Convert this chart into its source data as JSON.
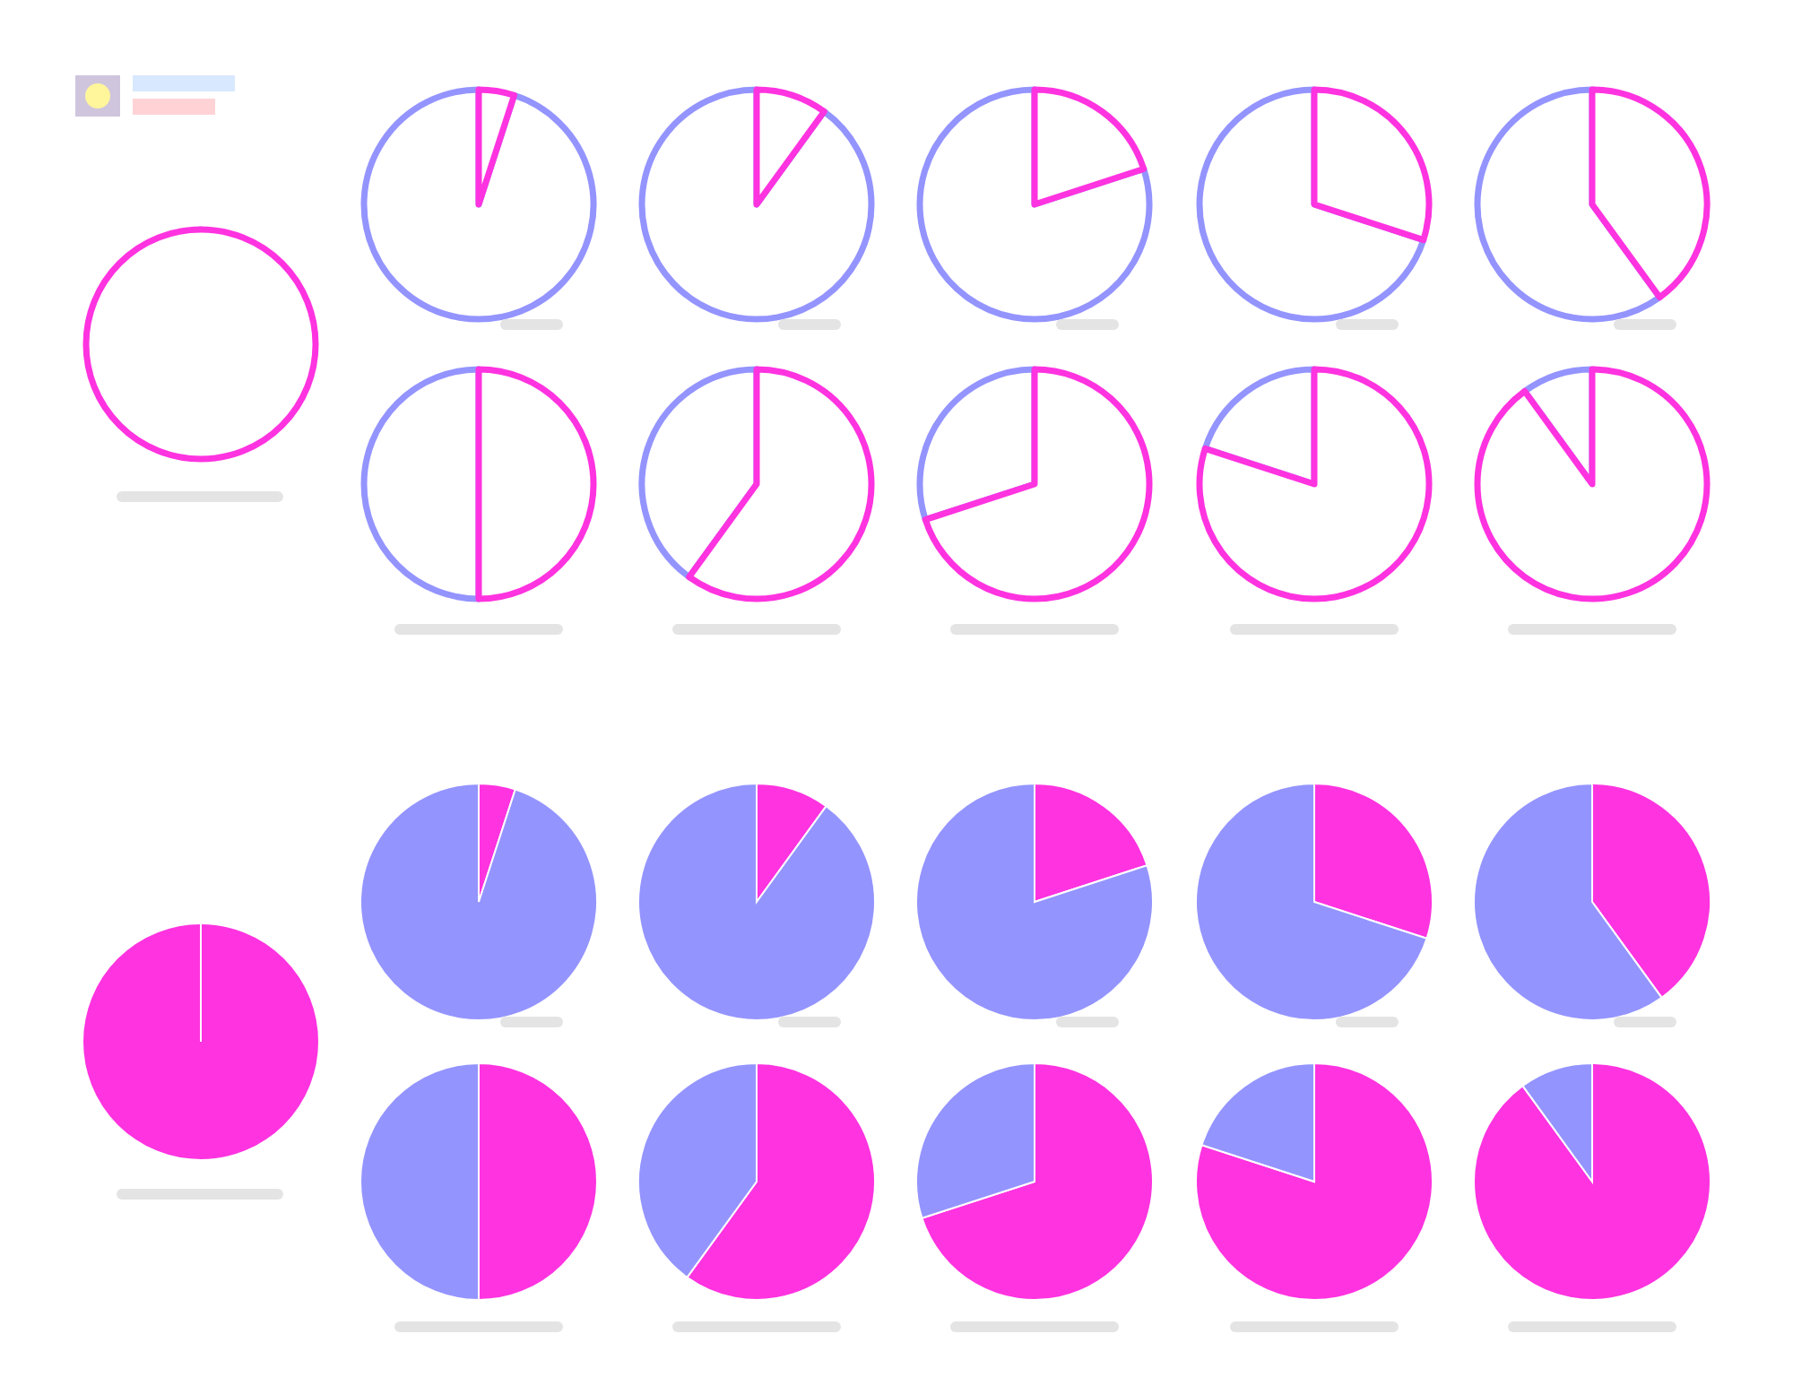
{
  "chart_data": [
    {
      "type": "pie",
      "categories": [
        null,
        null
      ],
      "values": [
        100,
        0
      ],
      "colors": [
        "#ff33e0",
        "#9494ff"
      ]
    },
    {
      "type": "pie",
      "categories": [
        null,
        null
      ],
      "values": [
        5,
        95
      ],
      "colors": [
        "#ff33e0",
        "#9494ff"
      ]
    },
    {
      "type": "pie",
      "categories": [
        null,
        null
      ],
      "values": [
        10,
        90
      ],
      "colors": [
        "#ff33e0",
        "#9494ff"
      ]
    },
    {
      "type": "pie",
      "categories": [
        null,
        null
      ],
      "values": [
        20,
        80
      ],
      "colors": [
        "#ff33e0",
        "#9494ff"
      ]
    },
    {
      "type": "pie",
      "categories": [
        null,
        null
      ],
      "values": [
        30,
        70
      ],
      "colors": [
        "#ff33e0",
        "#9494ff"
      ]
    },
    {
      "type": "pie",
      "categories": [
        null,
        null
      ],
      "values": [
        40,
        60
      ],
      "colors": [
        "#ff33e0",
        "#9494ff"
      ]
    },
    {
      "type": "pie",
      "categories": [
        null,
        null
      ],
      "values": [
        50,
        50
      ],
      "colors": [
        "#ff33e0",
        "#9494ff"
      ]
    },
    {
      "type": "pie",
      "categories": [
        null,
        null
      ],
      "values": [
        60,
        40
      ],
      "colors": [
        "#ff33e0",
        "#9494ff"
      ]
    },
    {
      "type": "pie",
      "categories": [
        null,
        null
      ],
      "values": [
        70,
        30
      ],
      "colors": [
        "#ff33e0",
        "#9494ff"
      ]
    },
    {
      "type": "pie",
      "categories": [
        null,
        null
      ],
      "values": [
        80,
        20
      ],
      "colors": [
        "#ff33e0",
        "#9494ff"
      ]
    },
    {
      "type": "pie",
      "categories": [
        null,
        null
      ],
      "values": [
        90,
        10
      ],
      "colors": [
        "#ff33e0",
        "#9494ff"
      ]
    },
    {
      "type": "pie",
      "categories": [
        null,
        null
      ],
      "values": [
        100,
        0
      ],
      "colors": [
        "#ff33e0",
        "#9494ff"
      ]
    },
    {
      "type": "pie",
      "categories": [
        null,
        null
      ],
      "values": [
        5,
        95
      ],
      "colors": [
        "#ff33e0",
        "#9494ff"
      ]
    },
    {
      "type": "pie",
      "categories": [
        null,
        null
      ],
      "values": [
        10,
        90
      ],
      "colors": [
        "#ff33e0",
        "#9494ff"
      ]
    },
    {
      "type": "pie",
      "categories": [
        null,
        null
      ],
      "values": [
        20,
        80
      ],
      "colors": [
        "#ff33e0",
        "#9494ff"
      ]
    },
    {
      "type": "pie",
      "categories": [
        null,
        null
      ],
      "values": [
        30,
        70
      ],
      "colors": [
        "#ff33e0",
        "#9494ff"
      ]
    },
    {
      "type": "pie",
      "categories": [
        null,
        null
      ],
      "values": [
        40,
        60
      ],
      "colors": [
        "#ff33e0",
        "#9494ff"
      ]
    },
    {
      "type": "pie",
      "categories": [
        null,
        null
      ],
      "values": [
        50,
        50
      ],
      "colors": [
        "#ff33e0",
        "#9494ff"
      ]
    },
    {
      "type": "pie",
      "categories": [
        null,
        null
      ],
      "values": [
        60,
        40
      ],
      "colors": [
        "#ff33e0",
        "#9494ff"
      ]
    },
    {
      "type": "pie",
      "categories": [
        null,
        null
      ],
      "values": [
        70,
        30
      ],
      "colors": [
        "#ff33e0",
        "#9494ff"
      ]
    },
    {
      "type": "pie",
      "categories": [
        null,
        null
      ],
      "values": [
        80,
        20
      ],
      "colors": [
        "#ff33e0",
        "#9494ff"
      ]
    },
    {
      "type": "pie",
      "categories": [
        null,
        null
      ],
      "values": [
        90,
        10
      ],
      "colors": [
        "#ff33e0",
        "#9494ff"
      ]
    }
  ]
}
